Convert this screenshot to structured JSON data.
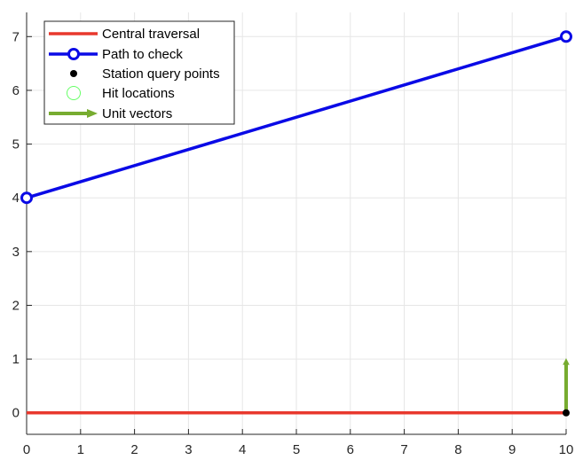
{
  "chart_data": {
    "type": "line",
    "title": "",
    "xlabel": "",
    "ylabel": "",
    "xlim": [
      0,
      10
    ],
    "ylim": [
      -0.4,
      7.45
    ],
    "xticks": [
      0,
      1,
      2,
      3,
      4,
      5,
      6,
      7,
      8,
      9,
      10
    ],
    "yticks": [
      0,
      1,
      2,
      3,
      4,
      5,
      6,
      7
    ],
    "xtick_labels": [
      "0",
      "1",
      "2",
      "3",
      "4",
      "5",
      "6",
      "7",
      "8",
      "9",
      "10"
    ],
    "ytick_labels": [
      "0",
      "1",
      "2",
      "3",
      "4",
      "5",
      "6",
      "7"
    ],
    "grid": true,
    "legend_position": "top-left",
    "series": [
      {
        "name": "Central traversal",
        "kind": "line",
        "color": "#E8382D",
        "x": [
          0,
          10
        ],
        "y": [
          0,
          0
        ]
      },
      {
        "name": "Path to check",
        "kind": "line-with-circle-markers",
        "color": "#0A0AE6",
        "x": [
          0,
          10
        ],
        "y": [
          4,
          7
        ]
      },
      {
        "name": "Station query points",
        "kind": "scatter",
        "color": "#000000",
        "x": [
          10
        ],
        "y": [
          0
        ]
      },
      {
        "name": "Hit locations",
        "kind": "scatter-open-circle",
        "color": "#66FF66",
        "x": [],
        "y": []
      },
      {
        "name": "Unit vectors",
        "kind": "quiver",
        "color": "#77AC30",
        "x": [
          10
        ],
        "y": [
          0
        ],
        "u": [
          0
        ],
        "v": [
          1
        ]
      }
    ]
  }
}
